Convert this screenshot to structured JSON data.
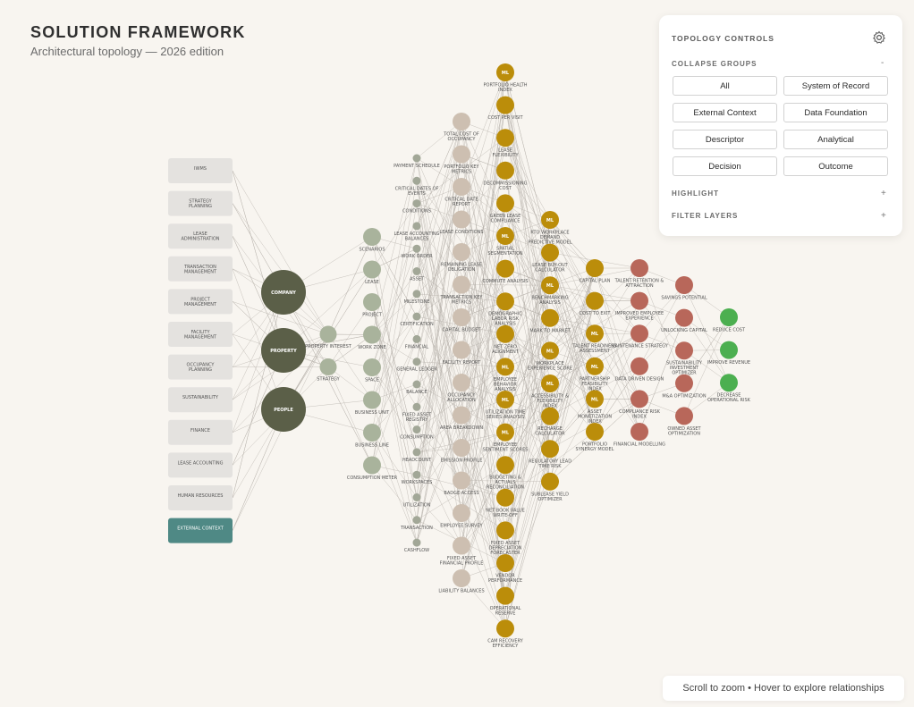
{
  "header": {
    "title": "SOLUTION FRAMEWORK",
    "subtitle": "Architectural topology — 2026 edition"
  },
  "colors": {
    "background": "#f8f5f0",
    "context_box": "#e4e2df",
    "context_box_active": "#4f8985",
    "descriptor_dark": "#5b5f48",
    "system_of_record": "#a9b39c",
    "data_foundation": "#a2a797",
    "descriptor_light": "#cdbfb1",
    "analytical": "#bb8d0a",
    "decision": "#b8675a",
    "outcome": "#4caf50",
    "edge": "#b5b0aa"
  },
  "left_boxes": [
    "IWMS",
    "STRATEGY PLANNING",
    "LEASE ADMINISTRATION",
    "TRANSACTION MANAGEMENT",
    "PROJECT MANAGEMENT",
    "FACILITY MANAGEMENT",
    "OCCUPANCY PLANNING",
    "SUSTAINABILITY",
    "FINANCE",
    "LEASE ACCOUNTING",
    "HUMAN RESOURCES",
    "EXTERNAL CONTEXT"
  ],
  "big_nodes": [
    "COMPANY",
    "PROPERTY",
    "PEOPLE"
  ],
  "col_sor": [
    "PROPERTY INTEREST",
    "STRATEGY"
  ],
  "col_mid": [
    "SCENARIOS",
    "LEASE",
    "PROJECT",
    "WORK ZONE",
    "SPACE",
    "BUSINESS UNIT",
    "BUSINESS LINE",
    "CONSUMPTION METER"
  ],
  "col_small": [
    "PAYMENT SCHEDULE",
    "CRITICAL DATES OF EVENTS",
    "CONDITIONS",
    "LEASE ACCOUNTING BALANCES",
    "WORK ORDER",
    "ASSET",
    "MILESTONE",
    "CERTIFICATION",
    "FINANCIAL",
    "GENERAL LEDGER",
    "BALANCE",
    "FIXED ASSET REGISTRY",
    "CONSUMPTION",
    "HEADCOUNT",
    "WORKSPACES",
    "UTILIZATION",
    "TRANSACTION",
    "CASHFLOW"
  ],
  "col_desc": [
    "TOTAL COST OF OCCUPANCY",
    "PORTFOLIO KEY METRICS",
    "CRITICAL DATE REPORT",
    "LEASE CONDITIONS",
    "REMAINING LEASE OBLIGATION",
    "TRANSACTION KEY METRICS",
    "CAPITAL BUDGET",
    "FACILITY REPORT",
    "OCCUPANCY ALLOCATION",
    "AREA BREAKDOWN",
    "EMISSION PROFILE",
    "BADGE ACCESS",
    "EMPLOYEE SURVEY",
    "FIXED ASSET FINANCIAL PROFILE",
    "LIABILITY BALANCES"
  ],
  "col_an1": [
    {
      "label": "PORTFOLIO HEALTH INDEX",
      "ml": true
    },
    {
      "label": "COST PER VISIT",
      "ml": false
    },
    {
      "label": "LEASE FLEXIBILITY",
      "ml": false
    },
    {
      "label": "DECOMMISSIONING COST",
      "ml": false
    },
    {
      "label": "GREEN LEASE COMPLIANCE",
      "ml": false
    },
    {
      "label": "SPATIAL SEGMENTATION",
      "ml": true
    },
    {
      "label": "COMMUTE ANALYSIS",
      "ml": false
    },
    {
      "label": "DEMOGRAPHIC LABOR RISK ANALYSIS",
      "ml": false
    },
    {
      "label": "NET ZERO ALIGNMENT",
      "ml": false
    },
    {
      "label": "EMPLOYEE BEHAVIOR ANALYSIS",
      "ml": true
    },
    {
      "label": "UTILIZATION TIME SERIES ANALYSIS",
      "ml": true
    },
    {
      "label": "EMPLOYEE SENTIMENT SCORES",
      "ml": true
    },
    {
      "label": "BUDGETING & ACTUALS RECONCILIATION",
      "ml": false
    },
    {
      "label": "NET BOOK VALUE WRITE-OFF",
      "ml": false
    },
    {
      "label": "FIXED ASSET DEPRECIATION FORECASTER",
      "ml": false
    },
    {
      "label": "VENDOR PERFORMANCE",
      "ml": false
    },
    {
      "label": "OPERATIONAL RESERVE",
      "ml": false
    },
    {
      "label": "CAM RECOVERY EFFICIENCY",
      "ml": false
    }
  ],
  "col_an2": [
    {
      "label": "RTO WORKPLACE DEMAND PREDICTIVE MODEL",
      "ml": true
    },
    {
      "label": "LEASE BUY-OUT CALCULATOR",
      "ml": false
    },
    {
      "label": "BENCHMARKING ANALYSIS",
      "ml": true
    },
    {
      "label": "MARK TO MARKET",
      "ml": false
    },
    {
      "label": "WORKPLACE EXPERIENCE SCORE",
      "ml": true
    },
    {
      "label": "ACCESSIBILITY & FLEXIBILITY INDEX",
      "ml": true
    },
    {
      "label": "RECHARGE CALCULATOR",
      "ml": false
    },
    {
      "label": "REGULATORY LEAD TIME RISK",
      "ml": false
    },
    {
      "label": "SUBLEASE YIELD OPTIMIZER",
      "ml": false
    }
  ],
  "col_an3": [
    {
      "label": "CAPITAL PLAN",
      "ml": false
    },
    {
      "label": "COST TO EXIT",
      "ml": false
    },
    {
      "label": "TALENT READINESS ASSESSMENT",
      "ml": true
    },
    {
      "label": "PARTNERSHIP FEASIBILITY INDEX",
      "ml": true
    },
    {
      "label": "ASSET MONETIZATION INDEX",
      "ml": true
    },
    {
      "label": "PORTFOLIO SYNERGY MODEL",
      "ml": false
    }
  ],
  "col_dec1": [
    "TALENT RETENTION & ATTRACTION",
    "IMPROVED EMPLOYEE EXPERIENCE",
    "MAINTENANCE STRATEGY",
    "DATA DRIVEN DESIGN",
    "COMPLIANCE RISK INDEX",
    "FINANCIAL MODELLING"
  ],
  "col_dec2": [
    "SAVINGS POTENTIAL",
    "UNLOCKING CAPITAL",
    "SUSTAINABILITY INVESTMENT OPTIMIZER",
    "M&A OPTIMIZATION",
    "OWNED ASSET OPTIMIZATION"
  ],
  "col_out": [
    "REDUCE COST",
    "IMPROVE REVENUE",
    "DECREASE OPERATIONAL RISK"
  ],
  "ml_badge": "ML",
  "controls": {
    "title": "TOPOLOGY CONTROLS",
    "collapse_label": "COLLAPSE GROUPS",
    "collapse_sign": "-",
    "buttons": [
      "All",
      "System of Record",
      "External Context",
      "Data Foundation",
      "Descriptor",
      "Analytical",
      "Decision",
      "Outcome"
    ],
    "highlight_label": "HIGHLIGHT",
    "highlight_sign": "+",
    "filter_label": "FILTER LAYERS",
    "filter_sign": "+"
  },
  "hint": "Scroll to zoom • Hover to explore relationships"
}
